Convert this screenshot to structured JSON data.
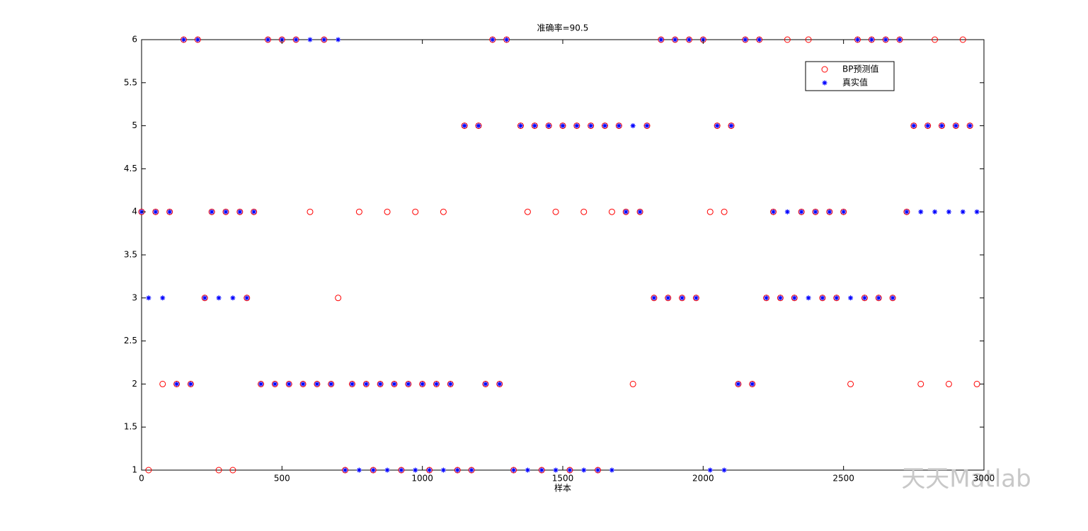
{
  "chart_data": {
    "type": "scatter",
    "title": "准确率=90.5",
    "x_label": "样本",
    "x": [
      0,
      25,
      50,
      75,
      100,
      125,
      150,
      175,
      200,
      225,
      250,
      275,
      300,
      325,
      350,
      375,
      400,
      425,
      450,
      475,
      500,
      525,
      550,
      575,
      600,
      625,
      650,
      675,
      700,
      725,
      750,
      775,
      800,
      825,
      850,
      875,
      900,
      925,
      950,
      975,
      1000,
      1025,
      1050,
      1075,
      1100,
      1125,
      1150,
      1175,
      1200,
      1225,
      1250,
      1275,
      1300,
      1325,
      1350,
      1375,
      1400,
      1425,
      1450,
      1475,
      1500,
      1525,
      1550,
      1575,
      1600,
      1625,
      1650,
      1675,
      1700,
      1725,
      1750,
      1775,
      1800,
      1825,
      1850,
      1875,
      1900,
      1925,
      1950,
      1975,
      2000,
      2025,
      2050,
      2075,
      2100,
      2125,
      2150,
      2175,
      2200,
      2225,
      2250,
      2275,
      2300,
      2325,
      2350,
      2375,
      2400,
      2425,
      2450,
      2475,
      2500,
      2525,
      2550,
      2575,
      2600,
      2625,
      2650,
      2675,
      2700,
      2725,
      2750,
      2775,
      2800,
      2825,
      2850,
      2875,
      2900,
      2925,
      2950,
      2975
    ],
    "series": [
      {
        "name": "BP预测值",
        "color": "#ff0000",
        "marker": "circle",
        "values": [
          4,
          1,
          4,
          2,
          4,
          2,
          6,
          2,
          6,
          3,
          4,
          1,
          4,
          1,
          4,
          3,
          4,
          2,
          6,
          2,
          6,
          2,
          6,
          2,
          4,
          2,
          6,
          2,
          3,
          1,
          2,
          4,
          2,
          1,
          2,
          4,
          2,
          1,
          2,
          4,
          2,
          1,
          2,
          4,
          2,
          1,
          5,
          1,
          5,
          2,
          6,
          2,
          6,
          1,
          5,
          4,
          5,
          1,
          5,
          4,
          5,
          1,
          5,
          4,
          5,
          1,
          5,
          4,
          5,
          4,
          2,
          4,
          5,
          3,
          6,
          3,
          6,
          3,
          6,
          3,
          6,
          4,
          5,
          4,
          5,
          2,
          6,
          2,
          6,
          3,
          4,
          3,
          6,
          3,
          4,
          6,
          4,
          3,
          4,
          3,
          4,
          2,
          6,
          3,
          6,
          3,
          6,
          3,
          6,
          4,
          5,
          2,
          5,
          6,
          5,
          2,
          5,
          6,
          5,
          2
        ]
      },
      {
        "name": "真实值",
        "color": "#0000ff",
        "marker": "star",
        "values": [
          4,
          3,
          4,
          3,
          4,
          2,
          6,
          2,
          6,
          3,
          4,
          3,
          4,
          3,
          4,
          3,
          4,
          2,
          6,
          2,
          6,
          2,
          6,
          2,
          6,
          2,
          6,
          2,
          6,
          1,
          2,
          1,
          2,
          1,
          2,
          1,
          2,
          1,
          2,
          1,
          2,
          1,
          2,
          1,
          2,
          1,
          5,
          1,
          5,
          2,
          6,
          2,
          6,
          1,
          5,
          1,
          5,
          1,
          5,
          1,
          5,
          1,
          5,
          1,
          5,
          1,
          5,
          1,
          5,
          4,
          5,
          4,
          5,
          3,
          6,
          3,
          6,
          3,
          6,
          3,
          6,
          1,
          5,
          1,
          5,
          2,
          6,
          2,
          6,
          3,
          4,
          3,
          4,
          3,
          4,
          3,
          4,
          3,
          4,
          3,
          4,
          3,
          6,
          3,
          6,
          3,
          6,
          3,
          6,
          4,
          5,
          4,
          5,
          4,
          5,
          4,
          5,
          4,
          5,
          4
        ]
      }
    ],
    "xlim": [
      0,
      3000
    ],
    "xticks": [
      0,
      500,
      1000,
      1500,
      2000,
      2500,
      3000
    ],
    "ylim": [
      1,
      6
    ],
    "yticks": [
      1,
      1.5,
      2,
      2.5,
      3,
      3.5,
      4,
      4.5,
      5,
      5.5,
      6
    ],
    "legend": "upper-right",
    "watermark": "天天Matlab"
  }
}
